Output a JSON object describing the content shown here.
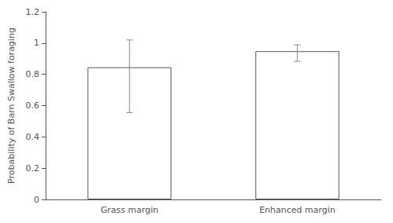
{
  "chart_data": {
    "type": "bar",
    "categories": [
      "Grass margin",
      "Enhanced margin"
    ],
    "values": [
      0.845,
      0.948
    ],
    "error_lower": [
      0.29,
      0.065
    ],
    "error_upper": [
      0.175,
      0.04
    ],
    "color": "#ffffff",
    "ylabel": "Probability of Barn Swallow foraging",
    "ylim": [
      0,
      1.2
    ],
    "yticks": [
      0,
      0.2,
      0.4,
      0.6,
      0.8,
      1,
      1.2
    ],
    "grid": false
  }
}
